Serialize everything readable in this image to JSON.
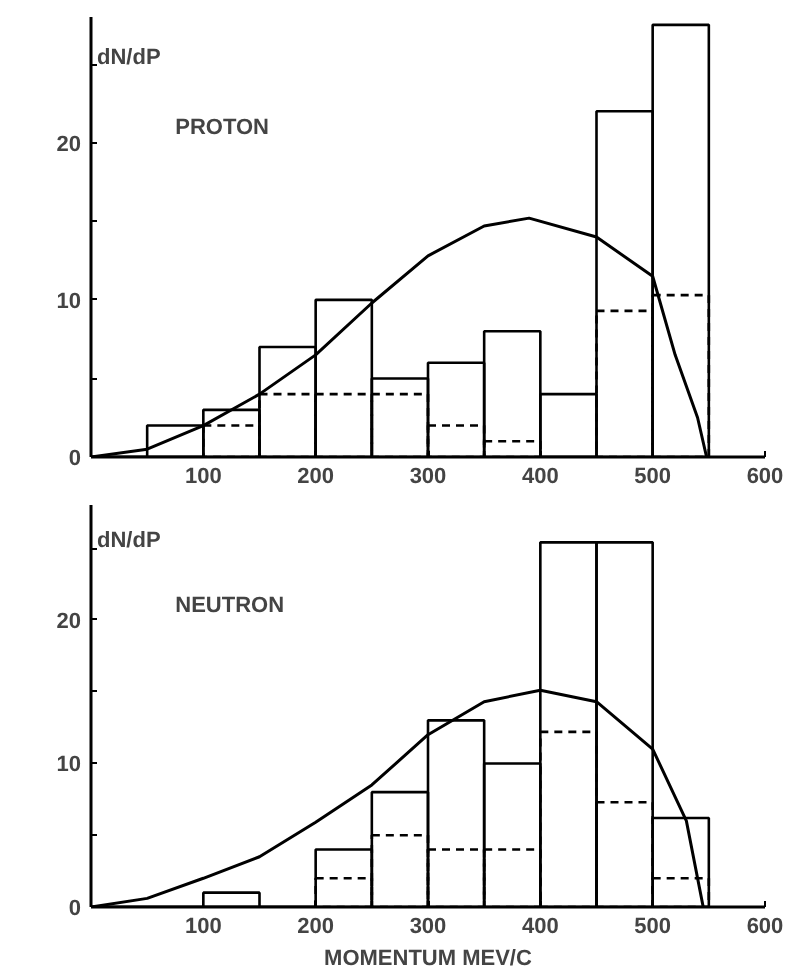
{
  "chart_data": [
    {
      "type": "histogram",
      "ylabel": "dN/dP",
      "annotations": [
        "PROTON"
      ],
      "bins": [
        0,
        50,
        100,
        150,
        200,
        250,
        300,
        350,
        400,
        450,
        500,
        550
      ],
      "xlim": [
        0,
        600
      ],
      "ylim": [
        0,
        28
      ],
      "xticks": [
        100,
        200,
        300,
        400,
        500,
        600
      ],
      "yticks": [
        0,
        {
          "value": 5,
          "label": null
        },
        10,
        {
          "value": 15,
          "label": null
        },
        20,
        {
          "value": 25,
          "label": null
        }
      ],
      "grid": false,
      "series": [
        {
          "color": "#000000",
          "line_style": "solid",
          "values": [
            0,
            2,
            3,
            7,
            10,
            5,
            6,
            8,
            4,
            22,
            27.5
          ]
        },
        {
          "color": "#000000",
          "line_style": "dashed",
          "values": [
            0,
            0,
            2,
            4,
            4,
            4,
            2,
            1,
            0,
            9.3,
            10.3
          ]
        },
        {
          "type": "line",
          "color": "#000000",
          "line_style": "solid",
          "x": [
            0,
            50,
            100,
            150,
            200,
            250,
            300,
            350,
            390,
            450,
            500,
            520,
            540,
            548
          ],
          "values": [
            0,
            0.5,
            2,
            4,
            6.5,
            9.8,
            12.8,
            14.7,
            15.2,
            14,
            11.5,
            6.5,
            2.5,
            0
          ]
        }
      ]
    },
    {
      "type": "histogram",
      "ylabel": "dN/dP",
      "xlabel": "MOMENTUM MEV/C",
      "annotations": [
        "NEUTRON"
      ],
      "bins": [
        0,
        50,
        100,
        150,
        200,
        250,
        300,
        350,
        400,
        450,
        500,
        550
      ],
      "xlim": [
        0,
        600
      ],
      "ylim": [
        0,
        28
      ],
      "xticks": [
        100,
        200,
        300,
        400,
        500,
        600
      ],
      "yticks": [
        0,
        {
          "value": 5,
          "label": null
        },
        10,
        {
          "value": 15,
          "label": null
        },
        20,
        {
          "value": 25,
          "label": null
        }
      ],
      "grid": false,
      "series": [
        {
          "color": "#000000",
          "line_style": "solid",
          "values": [
            0,
            0,
            1,
            0,
            4,
            8,
            13,
            10,
            25.4,
            25.4,
            6.2
          ]
        },
        {
          "color": "#000000",
          "line_style": "dashed",
          "values": [
            0,
            0,
            0,
            0,
            2,
            5,
            4,
            4,
            12.2,
            7.3,
            2
          ]
        },
        {
          "type": "line",
          "color": "#000000",
          "line_style": "solid",
          "x": [
            0,
            50,
            100,
            150,
            200,
            250,
            300,
            350,
            400,
            450,
            500,
            530,
            545
          ],
          "values": [
            0,
            0.6,
            2,
            3.5,
            5.9,
            8.5,
            12,
            14.3,
            15.1,
            14.3,
            11,
            6,
            0
          ]
        }
      ]
    }
  ]
}
